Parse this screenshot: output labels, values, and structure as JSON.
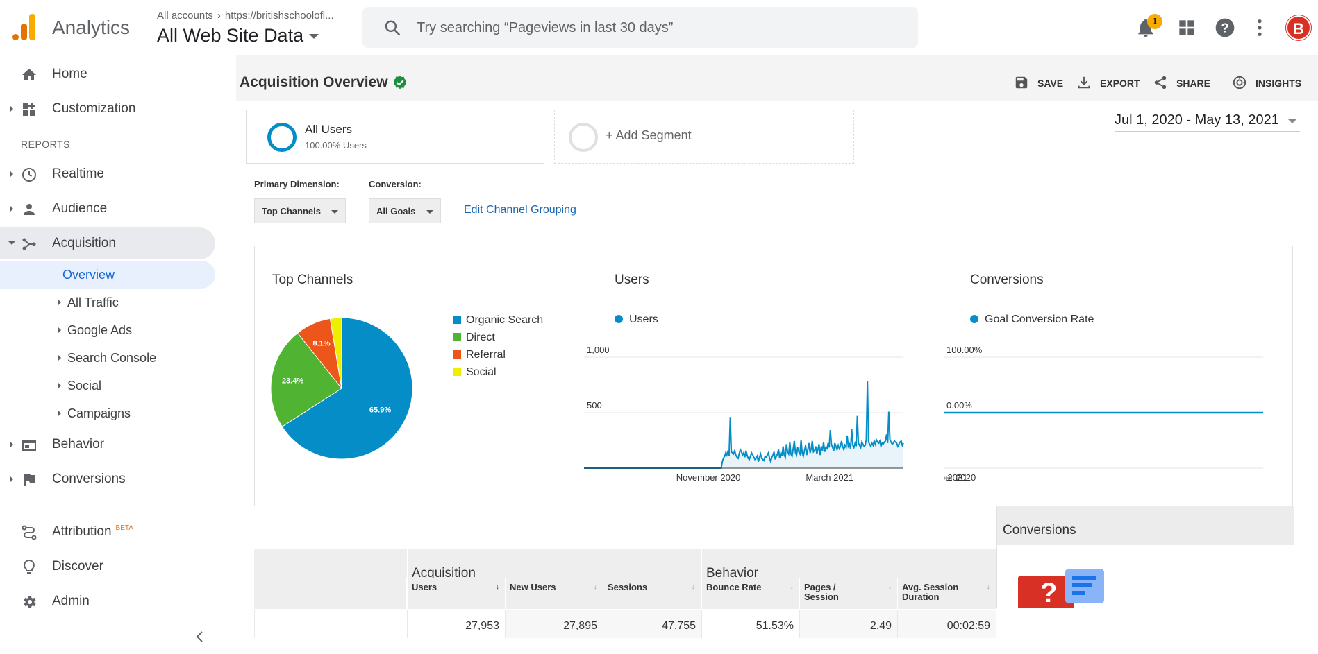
{
  "app": {
    "name": "Analytics"
  },
  "account": {
    "crumb_all": "All accounts",
    "crumb_property": "https://britishschoolofl...",
    "view": "All Web Site Data"
  },
  "search": {
    "placeholder": "Try searching “Pageviews in last 30 days”"
  },
  "topbar": {
    "notification_count": "1",
    "avatar_letter": "B"
  },
  "sidebar": {
    "items": [
      {
        "label": "Home",
        "icon": "home-icon"
      },
      {
        "label": "Customization",
        "icon": "customization-icon"
      }
    ],
    "reports_heading": "REPORTS",
    "report_items": [
      {
        "label": "Realtime",
        "icon": "clock-icon"
      },
      {
        "label": "Audience",
        "icon": "person-icon"
      },
      {
        "label": "Acquisition",
        "icon": "acquisition-icon"
      }
    ],
    "acquisition_sub": [
      "Overview",
      "All Traffic",
      "Google Ads",
      "Search Console",
      "Social",
      "Campaigns"
    ],
    "more_items": [
      {
        "label": "Behavior",
        "icon": "behavior-icon"
      },
      {
        "label": "Conversions",
        "icon": "flag-icon"
      }
    ],
    "bottom_items": [
      {
        "label": "Attribution",
        "badge": "BETA",
        "icon": "attribution-icon"
      },
      {
        "label": "Discover",
        "icon": "lightbulb-icon"
      },
      {
        "label": "Admin",
        "icon": "gear-icon"
      }
    ]
  },
  "page": {
    "title": "Acquisition Overview",
    "actions": {
      "save": "SAVE",
      "export": "EXPORT",
      "share": "SHARE",
      "insights": "INSIGHTS"
    },
    "segments": {
      "all_users": "All Users",
      "all_users_pct": "100.00% Users",
      "add": "+ Add Segment"
    },
    "date_range": "Jul 1, 2020 - May 13, 2021",
    "primary_dimension_label": "Primary Dimension:",
    "primary_dimension_value": "Top Channels",
    "conversion_label": "Conversion:",
    "conversion_value": "All Goals",
    "edit_grouping": "Edit Channel Grouping"
  },
  "colors": {
    "organic": "#058dc7",
    "direct": "#50b432",
    "referral": "#ed561b",
    "social": "#edef00",
    "accent": "#1967d2"
  },
  "chart_data": [
    {
      "type": "pie",
      "title": "Top Channels",
      "labels": [
        "Organic Search",
        "Direct",
        "Referral",
        "Social"
      ],
      "values": [
        65.9,
        23.4,
        8.1,
        2.6
      ],
      "value_labels": [
        "65.9%",
        "23.4%",
        "8.1%",
        ""
      ]
    },
    {
      "type": "area",
      "title": "Users",
      "series_name": "Users",
      "y_ticks": [
        "1,000",
        "500"
      ],
      "x_ticks": [
        "November 2020",
        "March 2021"
      ],
      "ylim": [
        0,
        1000
      ],
      "x_start": "2020-07-01",
      "x_end": "2021-05-13",
      "values": [
        0,
        0,
        0,
        0,
        0,
        0,
        0,
        0,
        0,
        0,
        0,
        0,
        0,
        0,
        0,
        0,
        0,
        0,
        0,
        0,
        0,
        0,
        0,
        0,
        0,
        0,
        0,
        0,
        0,
        0,
        0,
        0,
        0,
        0,
        0,
        0,
        0,
        0,
        0,
        0,
        0,
        0,
        0,
        0,
        0,
        0,
        0,
        0,
        0,
        0,
        0,
        0,
        0,
        0,
        0,
        0,
        0,
        0,
        0,
        0,
        0,
        0,
        0,
        0,
        0,
        0,
        0,
        0,
        0,
        0,
        0,
        0,
        0,
        0,
        0,
        0,
        0,
        0,
        0,
        0,
        0,
        0,
        0,
        0,
        0,
        0,
        0,
        0,
        0,
        0,
        0,
        0,
        0,
        0,
        0,
        0,
        0,
        0,
        0,
        0,
        0,
        0,
        0,
        0,
        0,
        0,
        0,
        0,
        0,
        0,
        0,
        0,
        0,
        0,
        0,
        0,
        0,
        0,
        0,
        0,
        0,
        0,
        0,
        60,
        90,
        110,
        140,
        120,
        160,
        110,
        470,
        150,
        140,
        130,
        160,
        120,
        100,
        90,
        130,
        170,
        150,
        120,
        140,
        100,
        160,
        120,
        90,
        80,
        110,
        140,
        120,
        100,
        80,
        90,
        110,
        60,
        100,
        130,
        90,
        80,
        70,
        110,
        100,
        120,
        140,
        90,
        60,
        100,
        120,
        150,
        80,
        110,
        130,
        170,
        90,
        140,
        110,
        200,
        120,
        100,
        220,
        150,
        130,
        240,
        130,
        110,
        180,
        250,
        140,
        120,
        190,
        150,
        130,
        260,
        140,
        110,
        160,
        210,
        120,
        170,
        230,
        140,
        180,
        250,
        150,
        160,
        200,
        130,
        170,
        220,
        120,
        200,
        160,
        240,
        150,
        190,
        180,
        230,
        190,
        350,
        220,
        190,
        160,
        230,
        200,
        170,
        210,
        180,
        200,
        250,
        200,
        170,
        210,
        190,
        300,
        200,
        220,
        180,
        360,
        210,
        190,
        230,
        200,
        480,
        230,
        210,
        190,
        240,
        220,
        200,
        210,
        260,
        800,
        240,
        220,
        200,
        230,
        210,
        250,
        220,
        260,
        240,
        230,
        250,
        200,
        230,
        220,
        240,
        250,
        310,
        230,
        520,
        260,
        240,
        220,
        230,
        250,
        240,
        230,
        200,
        220,
        240,
        250,
        210,
        230
      ]
    },
    {
      "type": "line",
      "title": "Conversions",
      "series_name": "Goal Conversion Rate",
      "y_ticks": [
        "100.00%",
        "0.00%"
      ],
      "x_ticks": [
        "November 2020",
        "March 2021"
      ],
      "ylim": [
        0,
        100
      ],
      "values_note_value": 0
    }
  ],
  "table": {
    "conversions_title": "Conversions",
    "groups": {
      "acquisition": "Acquisition",
      "behavior": "Behavior"
    },
    "columns": [
      "Users",
      "New Users",
      "Sessions",
      "Bounce Rate",
      "Pages / Session",
      "Avg. Session Duration"
    ],
    "totals": [
      "27,953",
      "27,895",
      "47,755",
      "51.53%",
      "2.49",
      "00:02:59"
    ]
  }
}
